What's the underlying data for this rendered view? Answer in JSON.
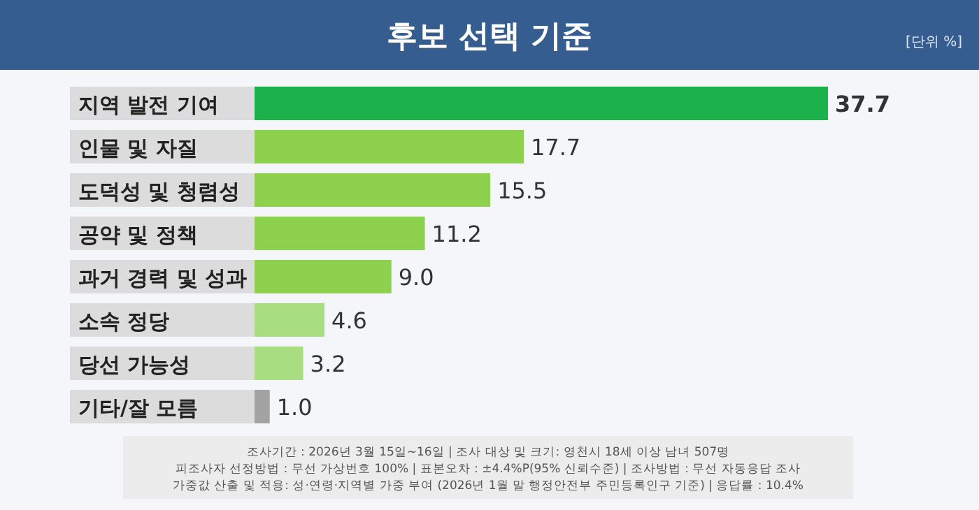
{
  "chart_data": {
    "type": "bar",
    "orientation": "horizontal",
    "title": "후보 선택 기준",
    "subtitle": "[단위 %]",
    "categories": [
      "지역 발전 기여",
      "인물 및 자질",
      "도덕성 및 청렴성",
      "공약 및 정책",
      "과거 경력 및 성과",
      "소속 정당",
      "당선 가능성",
      "기타/잘 모름"
    ],
    "values": [
      37.7,
      17.7,
      15.5,
      11.2,
      9.0,
      4.6,
      3.2,
      1.0
    ],
    "value_labels": [
      "37.7",
      "17.7",
      "15.5",
      "11.2",
      "9.0",
      "4.6",
      "3.2",
      "1.0"
    ],
    "colors": [
      "#1cb14b",
      "#8dd14f",
      "#8dd14f",
      "#8dd14f",
      "#8dd14f",
      "#a9dd82",
      "#a9dd82",
      "#a3a3a3"
    ],
    "annotations": [
      "조사기간 : 2026년 3월 15일~16일 | 조사 대상 및 크기: 영천시 18세 이상 남녀 507명",
      "피조사자 선정방법 : 무선 가상번호 100% | 표본오차 : ±4.4%P(95% 신뢰수준) | 조사방법 : 무선 자동응답 조사",
      "가중값 산출 및 적용: 성·연령·지역별 가중 부여 (2026년 1월 말 행정안전부 주민등록인구 기준) | 응답률 : 10.4%"
    ]
  }
}
